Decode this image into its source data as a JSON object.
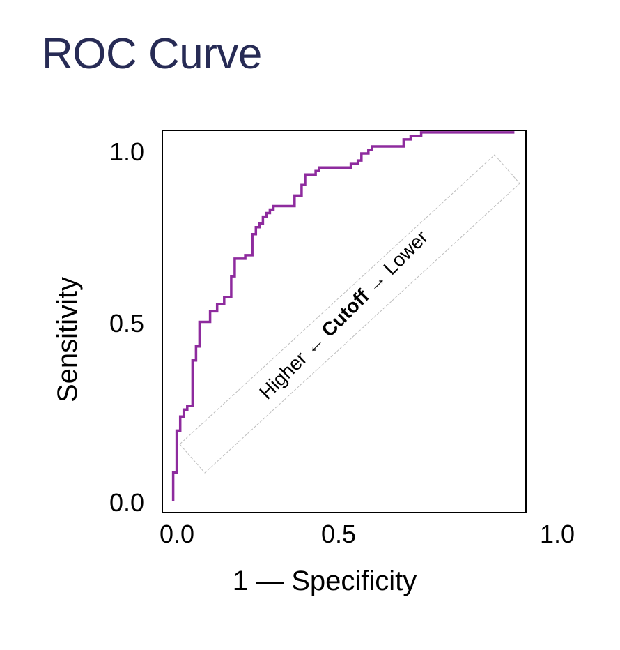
{
  "page": {
    "title": "ROC Curve"
  },
  "colors": {
    "title": "#272b55",
    "curve": "#8e2b9e",
    "axis": "#000000",
    "annotation_box": "#bdbdbd"
  },
  "chart_data": {
    "type": "line",
    "title": "",
    "xlabel": "1 — Specificity",
    "ylabel": "Sensitivity",
    "xlim": [
      0,
      1
    ],
    "ylim": [
      0,
      1.05
    ],
    "x_ticks": [
      0.0,
      0.5,
      1.0
    ],
    "x_tick_labels": [
      "0.0",
      "0.5",
      "1.0"
    ],
    "y_ticks": [
      0.0,
      0.5,
      1.0
    ],
    "y_tick_labels": [
      "0.0",
      "0.5",
      "1.0"
    ],
    "grid": false,
    "legend": "none",
    "annotation": {
      "left_text": "Higher ←",
      "center_text": "Cutoff",
      "right_text": "→ Lower",
      "rotation_deg": -45
    },
    "series": [
      {
        "points": [
          [
            0.015,
            0.0
          ],
          [
            0.015,
            0.08
          ],
          [
            0.025,
            0.08
          ],
          [
            0.025,
            0.2
          ],
          [
            0.035,
            0.2
          ],
          [
            0.035,
            0.24
          ],
          [
            0.045,
            0.24
          ],
          [
            0.045,
            0.26
          ],
          [
            0.055,
            0.26
          ],
          [
            0.055,
            0.27
          ],
          [
            0.07,
            0.27
          ],
          [
            0.07,
            0.4
          ],
          [
            0.08,
            0.4
          ],
          [
            0.08,
            0.44
          ],
          [
            0.09,
            0.44
          ],
          [
            0.09,
            0.51
          ],
          [
            0.12,
            0.51
          ],
          [
            0.12,
            0.54
          ],
          [
            0.14,
            0.54
          ],
          [
            0.14,
            0.56
          ],
          [
            0.16,
            0.56
          ],
          [
            0.16,
            0.58
          ],
          [
            0.18,
            0.58
          ],
          [
            0.18,
            0.64
          ],
          [
            0.19,
            0.64
          ],
          [
            0.19,
            0.69
          ],
          [
            0.22,
            0.69
          ],
          [
            0.22,
            0.7
          ],
          [
            0.24,
            0.7
          ],
          [
            0.24,
            0.76
          ],
          [
            0.25,
            0.76
          ],
          [
            0.25,
            0.78
          ],
          [
            0.26,
            0.78
          ],
          [
            0.26,
            0.79
          ],
          [
            0.27,
            0.79
          ],
          [
            0.27,
            0.81
          ],
          [
            0.28,
            0.81
          ],
          [
            0.28,
            0.82
          ],
          [
            0.29,
            0.82
          ],
          [
            0.29,
            0.83
          ],
          [
            0.3,
            0.83
          ],
          [
            0.3,
            0.84
          ],
          [
            0.36,
            0.84
          ],
          [
            0.36,
            0.87
          ],
          [
            0.38,
            0.87
          ],
          [
            0.38,
            0.9
          ],
          [
            0.39,
            0.9
          ],
          [
            0.39,
            0.93
          ],
          [
            0.42,
            0.93
          ],
          [
            0.42,
            0.94
          ],
          [
            0.43,
            0.94
          ],
          [
            0.43,
            0.95
          ],
          [
            0.52,
            0.95
          ],
          [
            0.52,
            0.96
          ],
          [
            0.54,
            0.96
          ],
          [
            0.54,
            0.97
          ],
          [
            0.55,
            0.97
          ],
          [
            0.55,
            0.99
          ],
          [
            0.57,
            0.99
          ],
          [
            0.57,
            1.0
          ],
          [
            0.58,
            1.0
          ],
          [
            0.58,
            1.01
          ],
          [
            0.67,
            1.01
          ],
          [
            0.67,
            1.03
          ],
          [
            0.69,
            1.03
          ],
          [
            0.69,
            1.04
          ],
          [
            0.72,
            1.04
          ],
          [
            0.72,
            1.05
          ],
          [
            0.985,
            1.05
          ]
        ]
      }
    ]
  }
}
